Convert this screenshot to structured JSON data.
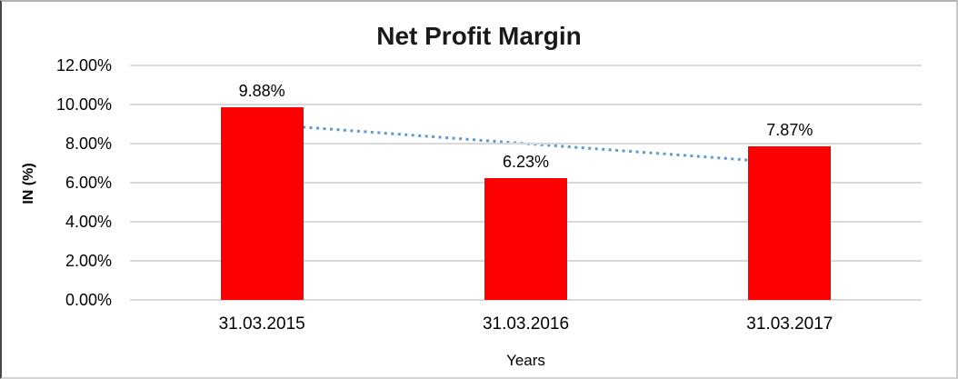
{
  "chart_data": {
    "type": "bar",
    "title": "Net Profit Margin",
    "categories": [
      "31.03.2015",
      "31.03.2016",
      "31.03.2017"
    ],
    "values": [
      9.88,
      6.23,
      7.87
    ],
    "data_labels": [
      "9.88%",
      "6.23%",
      "7.87%"
    ],
    "xlabel": "Years",
    "ylabel": "IN (%)",
    "ylim": [
      0,
      12
    ],
    "ytick_step": 2,
    "yticks": [
      "12.00%",
      "10.00%",
      "8.00%",
      "6.00%",
      "4.00%",
      "2.00%",
      "0.00%"
    ],
    "grid": true,
    "legend_position": "none",
    "bar_color": "#FF0000",
    "trendline": {
      "type": "linear",
      "style": "dotted",
      "color": "#5B9BD5",
      "start_value": 9.0,
      "end_value": 7.0
    }
  },
  "colors": {
    "gridline": "#D9D9D9",
    "title_text": "#1A1A1A",
    "label_text": "#000000",
    "background": "#FFFFFF"
  }
}
